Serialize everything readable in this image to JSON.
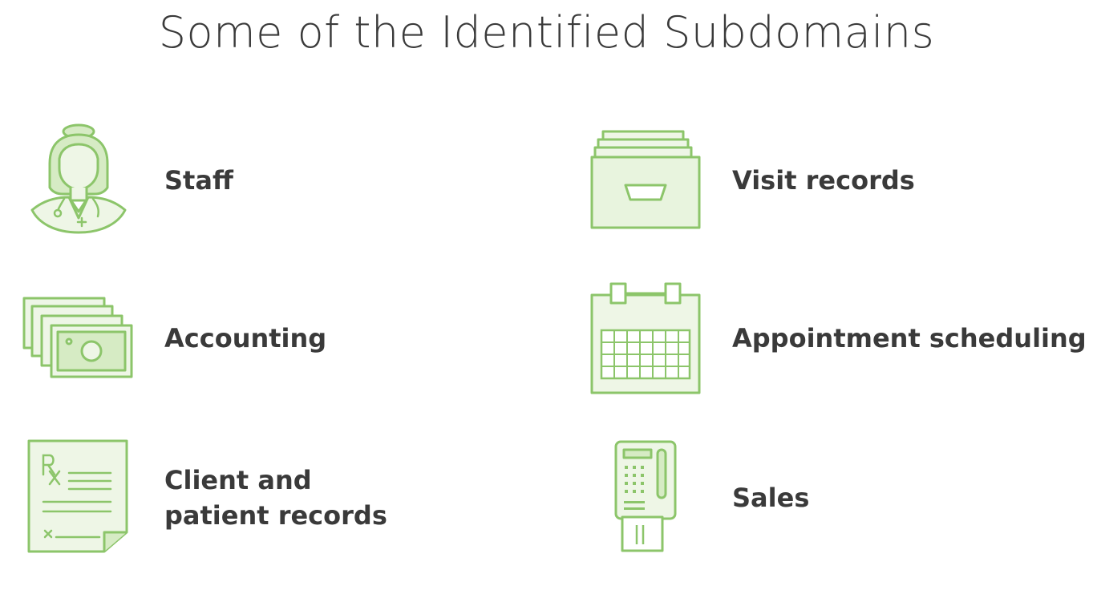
{
  "slide": {
    "title": "Some of the Identified Subdomains"
  },
  "colors": {
    "accent_stroke": "#8cc56a",
    "accent_fill": "#d6ebc4",
    "accent_light": "#eef6e6",
    "text": "#3a3a3a"
  },
  "subdomains": [
    {
      "label": "Staff",
      "icon": "staff-nurse-icon"
    },
    {
      "label": "Visit records",
      "icon": "file-drawer-icon"
    },
    {
      "label": "Accounting",
      "icon": "money-bills-icon"
    },
    {
      "label": "Appointment scheduling",
      "icon": "calendar-icon"
    },
    {
      "label_line1": "Client and",
      "label_line2": "patient records",
      "icon": "prescription-document-icon"
    },
    {
      "label": "Sales",
      "icon": "card-terminal-icon"
    }
  ]
}
